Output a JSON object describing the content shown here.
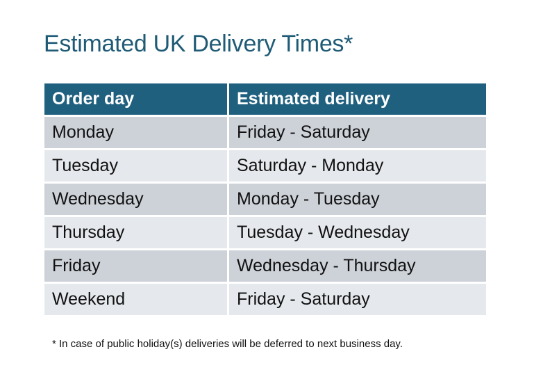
{
  "title": "Estimated UK Delivery Times*",
  "table": {
    "headers": [
      "Order day",
      "Estimated delivery"
    ],
    "rows": [
      [
        "Monday",
        "Friday - Saturday"
      ],
      [
        "Tuesday",
        "Saturday - Monday"
      ],
      [
        "Wednesday",
        "Monday - Tuesday"
      ],
      [
        "Thursday",
        "Tuesday - Wednesday"
      ],
      [
        "Friday",
        "Wednesday - Thursday"
      ],
      [
        "Weekend",
        "Friday - Saturday"
      ]
    ]
  },
  "footnote": "* In case of public holiday(s) deliveries will be deferred to next business day.",
  "colors": {
    "header": "#20607f",
    "title": "#1f5b76",
    "row_odd": "#cdd1d8",
    "row_even": "#e5e8ec"
  }
}
